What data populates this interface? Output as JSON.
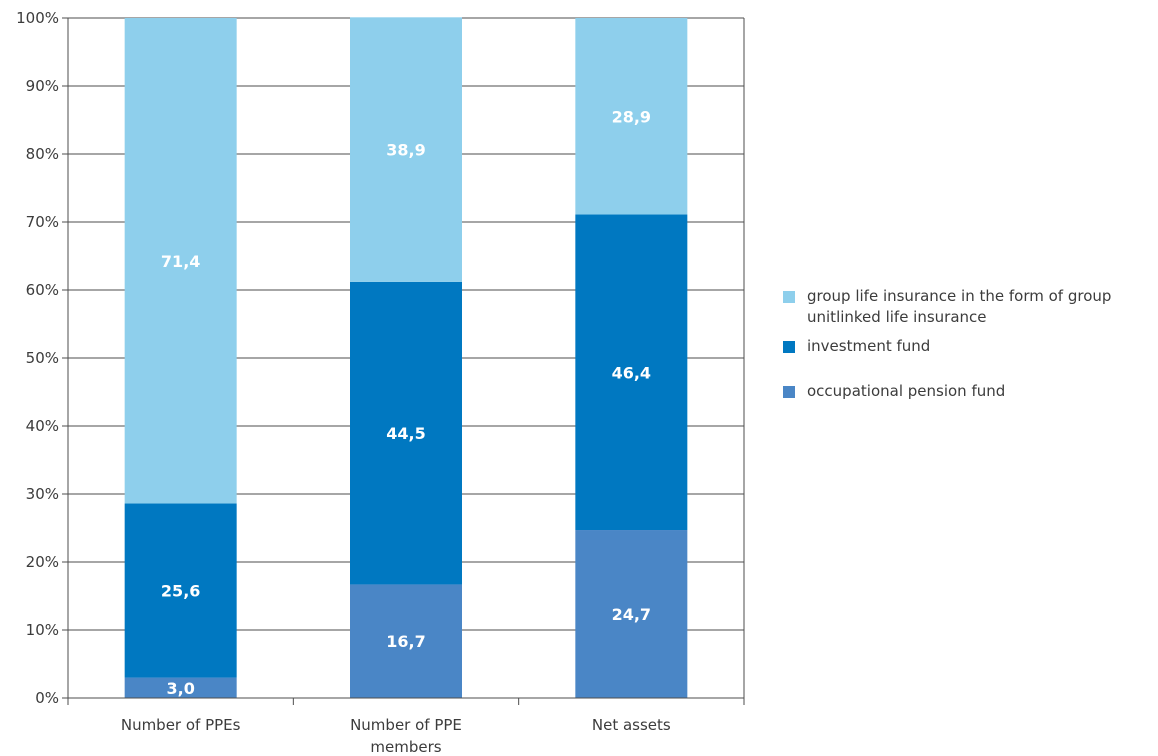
{
  "chart_data": {
    "type": "bar",
    "stacked": true,
    "categories": [
      "Number of PPEs",
      "Number of PPE members",
      "Net assets"
    ],
    "category_lines": [
      [
        "Number of PPEs"
      ],
      [
        "Number of PPE",
        "members"
      ],
      [
        "Net assets"
      ]
    ],
    "series": [
      {
        "name": "occupational pension fund",
        "color": "#4a86c6",
        "values": [
          3.0,
          16.7,
          24.7
        ],
        "labels": [
          "3,0",
          "16,7",
          "24,7"
        ]
      },
      {
        "name": "investment fund",
        "color": "#0078c1",
        "values": [
          25.6,
          44.5,
          46.4
        ],
        "labels": [
          "25,6",
          "44,5",
          "46,4"
        ]
      },
      {
        "name": "group life insurance in the form of group unitlinked life insurance",
        "color": "#8ecfec",
        "values": [
          71.4,
          38.9,
          28.9
        ],
        "labels": [
          "71,4",
          "38,9",
          "28,9"
        ]
      }
    ],
    "legend_order": [
      2,
      1,
      0
    ],
    "legend_lines": [
      [
        "group life insurance in the form of group",
        "unitlinked life insurance"
      ],
      [
        "investment fund"
      ],
      [
        "occupational pension fund"
      ]
    ],
    "ylim": [
      0,
      100
    ],
    "yticks": [
      "0%",
      "10%",
      "20%",
      "30%",
      "40%",
      "50%",
      "60%",
      "70%",
      "80%",
      "90%",
      "100%"
    ],
    "grid": true,
    "legend_position": "right"
  }
}
